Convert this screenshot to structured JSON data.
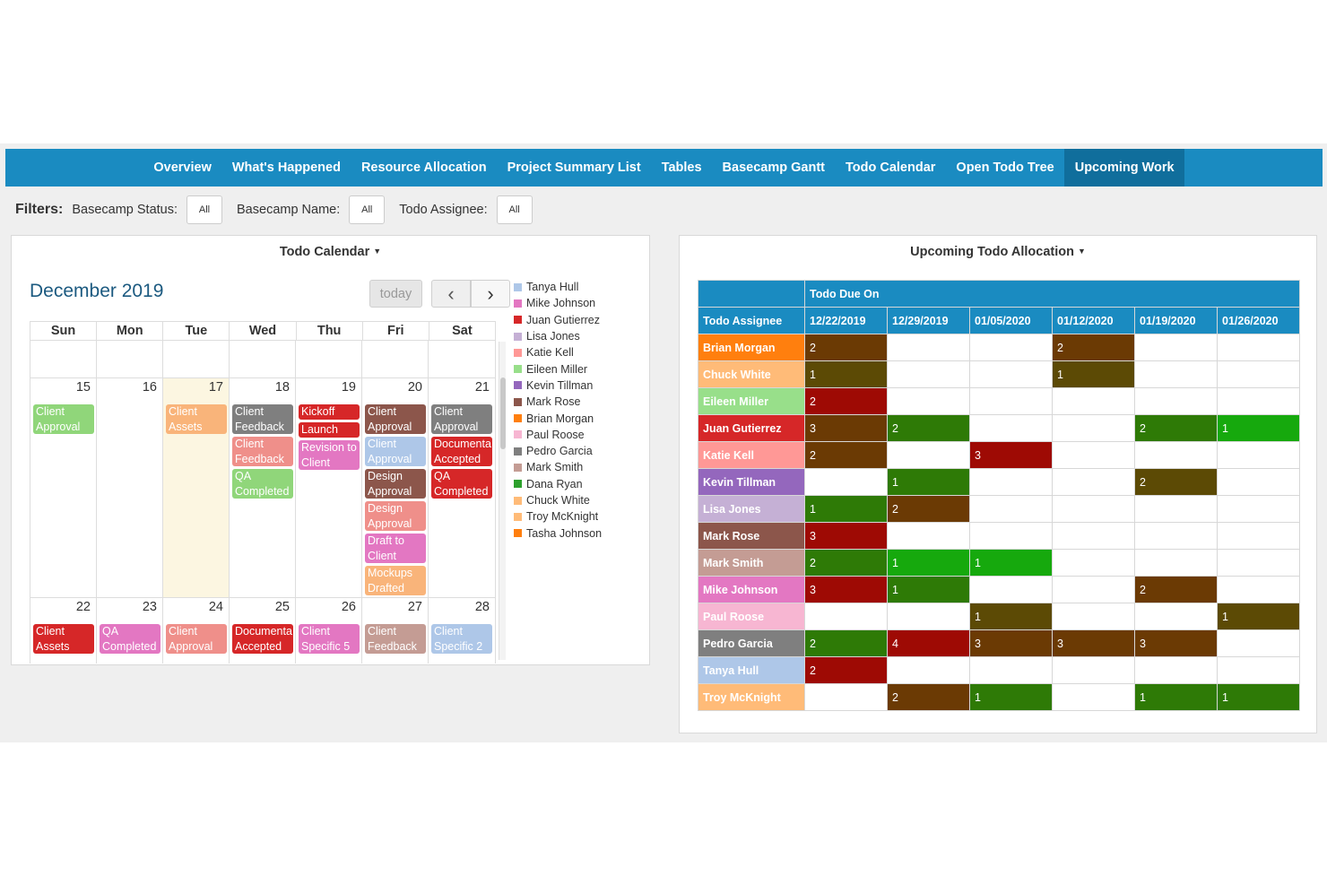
{
  "nav": {
    "items": [
      "Overview",
      "What's Happened",
      "Resource Allocation",
      "Project Summary List",
      "Tables",
      "Basecamp Gantt",
      "Todo Calendar",
      "Open Todo Tree",
      "Upcoming Work"
    ],
    "active_index": 8
  },
  "filters": {
    "label": "Filters:",
    "items": [
      {
        "label": "Basecamp Status:",
        "value": "All"
      },
      {
        "label": "Basecamp Name:",
        "value": "All"
      },
      {
        "label": "Todo Assignee:",
        "value": "All"
      }
    ]
  },
  "calendar": {
    "panel_title": "Todo Calendar",
    "month_title": "December 2019",
    "today_label": "today",
    "prev_icon": "‹",
    "next_icon": "›",
    "days_of_week": [
      "Sun",
      "Mon",
      "Tue",
      "Wed",
      "Thu",
      "Fri",
      "Sat"
    ],
    "today_date": "17",
    "weeks": [
      {
        "days": [
          {
            "num": "15",
            "events": [
              {
                "title": "Client Approval",
                "color": "#90d67a"
              }
            ]
          },
          {
            "num": "16",
            "events": []
          },
          {
            "num": "17",
            "events": [
              {
                "title": "Client Assets Received",
                "color": "#f9b47a"
              }
            ]
          },
          {
            "num": "18",
            "events": [
              {
                "title": "Client Feedback",
                "color": "#7f7f7f"
              },
              {
                "title": "Client Feedback",
                "color": "#ef8f8a"
              },
              {
                "title": "QA Completed",
                "color": "#90d67a"
              }
            ]
          },
          {
            "num": "19",
            "events": [
              {
                "title": "Kickoff",
                "color": "#d62728"
              },
              {
                "title": "Launch",
                "color": "#d62728"
              },
              {
                "title": "Revision to Client",
                "color": "#e377c2"
              }
            ]
          },
          {
            "num": "20",
            "events": [
              {
                "title": "Client Approval",
                "color": "#8c564b"
              },
              {
                "title": "Client Approval",
                "color": "#aec7e8"
              },
              {
                "title": "Design Approval",
                "color": "#8c564b"
              },
              {
                "title": "Design Approval",
                "color": "#ef8f8a"
              },
              {
                "title": "Draft to Client",
                "color": "#e377c2"
              },
              {
                "title": "Mockups Drafted",
                "color": "#f9b47a"
              }
            ]
          },
          {
            "num": "21",
            "events": [
              {
                "title": "Client Approval",
                "color": "#7f7f7f"
              },
              {
                "title": "Documenta Accepted",
                "color": "#d62728"
              },
              {
                "title": "QA Completed",
                "color": "#d62728"
              }
            ]
          }
        ]
      },
      {
        "days": [
          {
            "num": "22",
            "events": [
              {
                "title": "Client Assets Received",
                "color": "#d62728"
              }
            ]
          },
          {
            "num": "23",
            "events": [
              {
                "title": "QA Completed",
                "color": "#e377c2"
              }
            ]
          },
          {
            "num": "24",
            "events": [
              {
                "title": "Client Approval",
                "color": "#ef8f8a"
              }
            ]
          },
          {
            "num": "25",
            "events": [
              {
                "title": "Documenta Accepted",
                "color": "#d62728"
              }
            ]
          },
          {
            "num": "26",
            "events": [
              {
                "title": "Client Specific 5",
                "color": "#e377c2"
              }
            ]
          },
          {
            "num": "27",
            "events": [
              {
                "title": "Client Feedback",
                "color": "#c49c94"
              }
            ]
          },
          {
            "num": "28",
            "events": [
              {
                "title": "Client Specific 2",
                "color": "#aec7e8"
              }
            ]
          }
        ]
      }
    ],
    "legend": [
      {
        "name": "Tanya Hull",
        "color": "#aec7e8"
      },
      {
        "name": "Mike Johnson",
        "color": "#e377c2"
      },
      {
        "name": "Juan Gutierrez",
        "color": "#d62728"
      },
      {
        "name": "Lisa Jones",
        "color": "#c5b0d5"
      },
      {
        "name": "Katie Kell",
        "color": "#ff9896"
      },
      {
        "name": "Eileen Miller",
        "color": "#98df8a"
      },
      {
        "name": "Kevin Tillman",
        "color": "#9467bd"
      },
      {
        "name": "Mark Rose",
        "color": "#8c564b"
      },
      {
        "name": "Brian Morgan",
        "color": "#ff7f0e"
      },
      {
        "name": "Paul Roose",
        "color": "#f7b6d2"
      },
      {
        "name": "Pedro Garcia",
        "color": "#7f7f7f"
      },
      {
        "name": "Mark Smith",
        "color": "#c49c94"
      },
      {
        "name": "Dana Ryan",
        "color": "#2ca02c"
      },
      {
        "name": "Chuck White",
        "color": "#ffbb78"
      },
      {
        "name": "Troy McKnight",
        "color": "#ffbb78"
      },
      {
        "name": "Tasha Johnson",
        "color": "#ff7f0e"
      }
    ]
  },
  "allocation": {
    "panel_title": "Upcoming Todo Allocation",
    "group_header": "Todo Due On",
    "row_header": "Todo Assignee",
    "columns": [
      "12/22/2019",
      "12/29/2019",
      "01/05/2020",
      "01/12/2020",
      "01/19/2020",
      "01/26/2020"
    ],
    "rows": [
      {
        "name": "Brian Morgan",
        "color": "#ff7f0e",
        "cells": [
          {
            "v": "2",
            "c": "#6b3a04"
          },
          null,
          null,
          {
            "v": "2",
            "c": "#6b3a04"
          },
          null,
          null
        ]
      },
      {
        "name": "Chuck White",
        "color": "#ffbb78",
        "cells": [
          {
            "v": "1",
            "c": "#5c4a05"
          },
          null,
          null,
          {
            "v": "1",
            "c": "#5c4a05"
          },
          null,
          null
        ]
      },
      {
        "name": "Eileen Miller",
        "color": "#98df8a",
        "cells": [
          {
            "v": "2",
            "c": "#9e0a04"
          },
          null,
          null,
          null,
          null,
          null
        ]
      },
      {
        "name": "Juan Gutierrez",
        "color": "#d62728",
        "cells": [
          {
            "v": "3",
            "c": "#6b3a04"
          },
          {
            "v": "2",
            "c": "#2e7a06"
          },
          null,
          null,
          {
            "v": "2",
            "c": "#2e7a06"
          },
          {
            "v": "1",
            "c": "#16a90d"
          }
        ]
      },
      {
        "name": "Katie Kell",
        "color": "#ff9896",
        "cells": [
          {
            "v": "2",
            "c": "#6b3a04"
          },
          null,
          {
            "v": "3",
            "c": "#9e0a04"
          },
          null,
          null,
          null
        ]
      },
      {
        "name": "Kevin Tillman",
        "color": "#9467bd",
        "cells": [
          null,
          {
            "v": "1",
            "c": "#2e7a06"
          },
          null,
          null,
          {
            "v": "2",
            "c": "#5c4a05"
          },
          null
        ]
      },
      {
        "name": "Lisa Jones",
        "color": "#c5b0d5",
        "cells": [
          {
            "v": "1",
            "c": "#2e7a06"
          },
          {
            "v": "2",
            "c": "#6b3a04"
          },
          null,
          null,
          null,
          null
        ]
      },
      {
        "name": "Mark Rose",
        "color": "#8c564b",
        "cells": [
          {
            "v": "3",
            "c": "#9e0a04"
          },
          null,
          null,
          null,
          null,
          null
        ]
      },
      {
        "name": "Mark Smith",
        "color": "#c49c94",
        "cells": [
          {
            "v": "2",
            "c": "#2e7a06"
          },
          {
            "v": "1",
            "c": "#16a90d"
          },
          {
            "v": "1",
            "c": "#16a90d"
          },
          null,
          null,
          null
        ]
      },
      {
        "name": "Mike Johnson",
        "color": "#e377c2",
        "cells": [
          {
            "v": "3",
            "c": "#9e0a04"
          },
          {
            "v": "1",
            "c": "#2e7a06"
          },
          null,
          null,
          {
            "v": "2",
            "c": "#6b3a04"
          },
          null
        ]
      },
      {
        "name": "Paul Roose",
        "color": "#f7b6d2",
        "cells": [
          null,
          null,
          {
            "v": "1",
            "c": "#5c4a05"
          },
          null,
          null,
          {
            "v": "1",
            "c": "#5c4a05"
          }
        ]
      },
      {
        "name": "Pedro Garcia",
        "color": "#7f7f7f",
        "cells": [
          {
            "v": "2",
            "c": "#2e7a06"
          },
          {
            "v": "4",
            "c": "#9e0a04"
          },
          {
            "v": "3",
            "c": "#6b3a04"
          },
          {
            "v": "3",
            "c": "#6b3a04"
          },
          {
            "v": "3",
            "c": "#6b3a04"
          },
          null
        ]
      },
      {
        "name": "Tanya Hull",
        "color": "#aec7e8",
        "cells": [
          {
            "v": "2",
            "c": "#9e0a04"
          },
          null,
          null,
          null,
          null,
          null
        ]
      },
      {
        "name": "Troy McKnight",
        "color": "#ffbb78",
        "cells": [
          null,
          {
            "v": "2",
            "c": "#6b3a04"
          },
          {
            "v": "1",
            "c": "#2e7a06"
          },
          null,
          {
            "v": "1",
            "c": "#2e7a06"
          },
          {
            "v": "1",
            "c": "#2e7a06"
          }
        ]
      }
    ]
  }
}
